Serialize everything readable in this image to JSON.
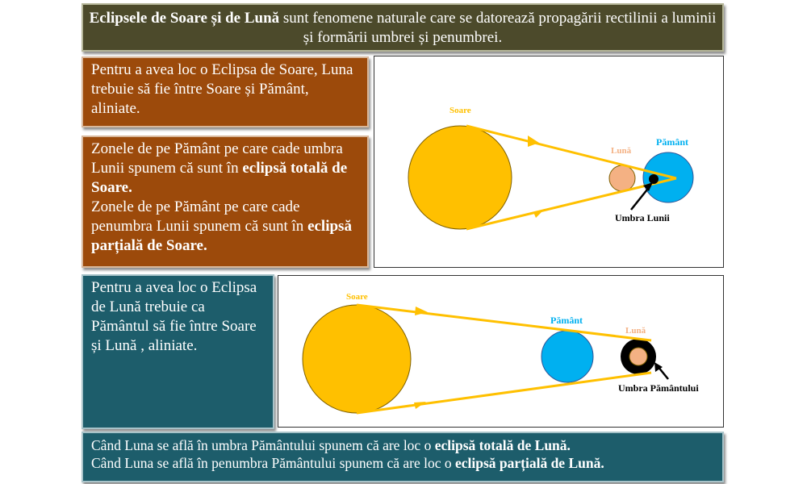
{
  "header": {
    "title_bold": "Eclipsele de Soare și de Lună",
    "title_rest": " sunt fenomene naturale care se datorează propagării rectilinii a luminii și formării umbrei și penumbrei."
  },
  "solar": {
    "condition": "Pentru a avea loc o Eclipsa de Soare, Luna trebuie să fie între Soare și Pământ, aliniate.",
    "total_text": "Zonele de pe Pământ pe care cade umbra Lunii spunem că sunt în ",
    "total_bold": "eclipsă totală de Soare.",
    "partial_text": "Zonele de pe Pământ pe care cade penumbra Lunii spunem că sunt în ",
    "partial_bold": "eclipsă parțială de Soare."
  },
  "lunar": {
    "condition": "Pentru a avea loc o Eclipsa de Lună trebuie ca Pământul să fie între Soare și Lună , aliniate.",
    "total_text": "Când Luna se află în umbra Pământului  spunem că are loc o ",
    "total_bold": "eclipsă totală de Lună.",
    "partial_text": "Când Luna se află în penumbra Pământului  spunem că are loc o ",
    "partial_bold": "eclipsă parțială de Lună."
  },
  "diagram_solar": {
    "sun_label": "Soare",
    "moon_label": "Lună",
    "earth_label": "Pământ",
    "shadow_label": "Umbra Lunii"
  },
  "diagram_lunar": {
    "sun_label": "Soare",
    "earth_label": "Pământ",
    "moon_label": "Lună",
    "shadow_label": "Umbra Pământului"
  },
  "colors": {
    "sun": "#ffc000",
    "earth": "#00b0f0",
    "moon": "#f4b183",
    "ray": "#ffc000",
    "title_bg": "#4c4a2b",
    "brown_bg": "#9c4a0b",
    "blue_bg": "#1d5d6b"
  }
}
